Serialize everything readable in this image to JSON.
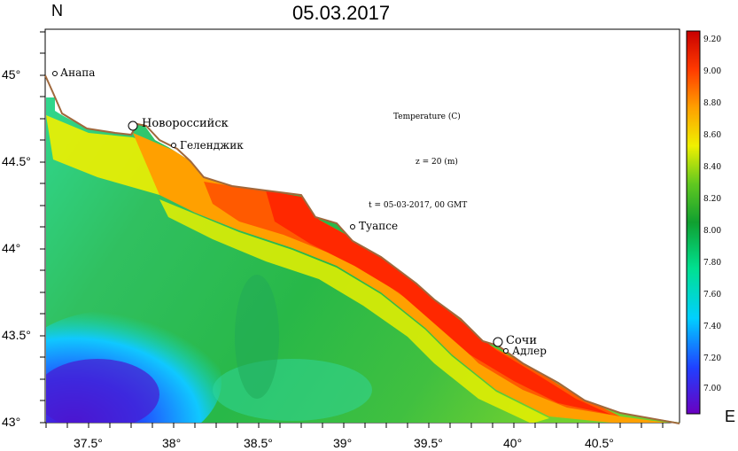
{
  "title": "05.03.2017",
  "north_label": "N",
  "east_label": "E",
  "y_axis": {
    "ticks": [
      {
        "value": 45.0,
        "label": "45°"
      },
      {
        "value": 44.5,
        "label": "44.5°"
      },
      {
        "value": 44.0,
        "label": "44°"
      },
      {
        "value": 43.5,
        "label": "43.5°"
      },
      {
        "value": 43.0,
        "label": "43°"
      }
    ]
  },
  "x_axis": {
    "ticks": [
      {
        "value": 37.5,
        "label": "37.5°"
      },
      {
        "value": 38.0,
        "label": "38°"
      },
      {
        "value": 38.5,
        "label": "38.5°"
      },
      {
        "value": 39.0,
        "label": "39°"
      },
      {
        "value": 39.5,
        "label": "39.5°"
      },
      {
        "value": 40.0,
        "label": "40°"
      },
      {
        "value": 40.5,
        "label": "40.5°"
      }
    ]
  },
  "annotations": {
    "variable": "Temperature (C)",
    "depth": "z = 20 (m)",
    "time": "t = 05-03-2017,  00 GMT"
  },
  "cities": [
    {
      "name": "Анапа",
      "lon": 37.32,
      "lat": 45.0,
      "marker": "small"
    },
    {
      "name": "Новороссийск",
      "lon": 37.77,
      "lat": 44.71,
      "marker": "large"
    },
    {
      "name": "Геленджик",
      "lon": 38.0,
      "lat": 44.58,
      "marker": "small"
    },
    {
      "name": "Туапсе",
      "lon": 39.07,
      "lat": 44.1,
      "marker": "small"
    },
    {
      "name": "Сочи",
      "lon": 39.73,
      "lat": 43.59,
      "marker": "large"
    },
    {
      "name": "Адлер",
      "lon": 39.92,
      "lat": 43.43,
      "marker": "small"
    }
  ],
  "colorbar": {
    "min": 6.9,
    "max": 9.25,
    "ticks": [
      "9.20",
      "9.00",
      "8.80",
      "8.60",
      "8.40",
      "8.20",
      "8.00",
      "7.80",
      "7.60",
      "7.40",
      "7.20",
      "7.00"
    ],
    "colors": [
      "#5a00c8",
      "#2030ff",
      "#00c8ff",
      "#00ffc0",
      "#20c040",
      "#00b050",
      "#80e020",
      "#ffff00",
      "#ffa000",
      "#ff5000",
      "#ff0000",
      "#d00000"
    ]
  },
  "colors": {
    "coast": "#a0683c",
    "water_warm": "#ff5a00",
    "water_cold": "#3020e0",
    "water_mid": "#20c060"
  }
}
